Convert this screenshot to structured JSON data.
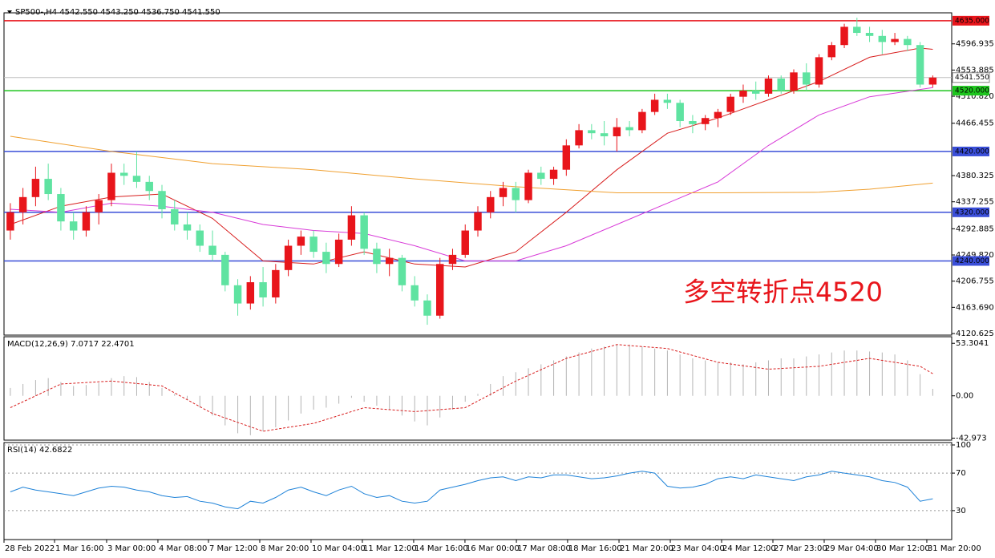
{
  "chart_data": [
    {
      "type": "candlestick",
      "title": "SP500-,H4  4542.550 4543.250 4536.750 4541.550",
      "up_color": "#e8151b",
      "down_color": "#5fe3a1",
      "open": [
        4290,
        4320,
        4345,
        4375,
        4350,
        4305,
        4290,
        4320,
        4340,
        4385,
        4380,
        4370,
        4355,
        4325,
        4300,
        4290,
        4265,
        4250,
        4200,
        4170,
        4205,
        4180,
        4225,
        4265,
        4280,
        4255,
        4235,
        4275,
        4315,
        4260,
        4235,
        4245,
        4200,
        4175,
        4150,
        4235,
        4250,
        4290,
        4320,
        4345,
        4360,
        4340,
        4385,
        4375,
        4390,
        4430,
        4455,
        4450,
        4445,
        4460,
        4455,
        4485,
        4505,
        4500,
        4470,
        4465,
        4475,
        4485,
        4510,
        4520,
        4515,
        4540,
        4520,
        4550,
        4530,
        4575,
        4595,
        4625,
        4615,
        4610,
        4600,
        4605,
        4595,
        4530
      ],
      "high": [
        4335,
        4360,
        4395,
        4400,
        4360,
        4320,
        4330,
        4350,
        4400,
        4400,
        4420,
        4380,
        4365,
        4340,
        4320,
        4300,
        4290,
        4255,
        4210,
        4215,
        4230,
        4235,
        4275,
        4290,
        4290,
        4270,
        4285,
        4330,
        4320,
        4270,
        4260,
        4250,
        4215,
        4185,
        4245,
        4260,
        4300,
        4330,
        4355,
        4370,
        4370,
        4390,
        4395,
        4395,
        4440,
        4465,
        4465,
        4470,
        4475,
        4470,
        4490,
        4515,
        4515,
        4505,
        4480,
        4480,
        4490,
        4515,
        4530,
        4535,
        4545,
        4545,
        4555,
        4565,
        4580,
        4600,
        4630,
        4640,
        4625,
        4620,
        4615,
        4610,
        4600,
        4545
      ],
      "low": [
        4275,
        4300,
        4330,
        4340,
        4290,
        4275,
        4280,
        4300,
        4330,
        4365,
        4360,
        4340,
        4310,
        4290,
        4275,
        4255,
        4240,
        4190,
        4150,
        4160,
        4165,
        4170,
        4215,
        4250,
        4245,
        4220,
        4230,
        4265,
        4250,
        4220,
        4215,
        4190,
        4165,
        4135,
        4145,
        4225,
        4245,
        4280,
        4310,
        4330,
        4320,
        4335,
        4365,
        4365,
        4380,
        4425,
        4440,
        4430,
        4420,
        4445,
        4450,
        4480,
        4490,
        4460,
        4450,
        4455,
        4460,
        4480,
        4500,
        4505,
        4510,
        4515,
        4515,
        4520,
        4525,
        4570,
        4590,
        4610,
        4600,
        4580,
        4595,
        4585,
        4525,
        4525
      ],
      "close": [
        4320,
        4345,
        4375,
        4350,
        4305,
        4290,
        4320,
        4340,
        4385,
        4380,
        4370,
        4355,
        4325,
        4300,
        4290,
        4265,
        4250,
        4200,
        4170,
        4205,
        4180,
        4225,
        4265,
        4280,
        4255,
        4235,
        4275,
        4315,
        4260,
        4235,
        4245,
        4200,
        4175,
        4150,
        4235,
        4250,
        4290,
        4320,
        4345,
        4360,
        4340,
        4385,
        4375,
        4390,
        4430,
        4455,
        4450,
        4445,
        4460,
        4455,
        4485,
        4505,
        4500,
        4470,
        4465,
        4475,
        4485,
        4510,
        4520,
        4515,
        4540,
        4520,
        4550,
        4530,
        4575,
        4595,
        4625,
        4615,
        4610,
        4600,
        4605,
        4595,
        4530,
        4541.55
      ],
      "lines": [
        {
          "color": "#d81e1e",
          "x": [
            0,
            4,
            8,
            12,
            16,
            20,
            24,
            28,
            32,
            36,
            40,
            44,
            48,
            52,
            56,
            60,
            64,
            68,
            72,
            73
          ],
          "values": [
            4300,
            4330,
            4345,
            4350,
            4310,
            4240,
            4235,
            4255,
            4235,
            4230,
            4255,
            4320,
            4390,
            4450,
            4475,
            4505,
            4535,
            4575,
            4590,
            4588
          ]
        },
        {
          "color": "#d83bd8",
          "x": [
            0,
            4,
            8,
            12,
            16,
            20,
            24,
            28,
            32,
            36,
            40,
            44,
            48,
            52,
            56,
            60,
            64,
            68,
            72,
            73
          ],
          "values": [
            4325,
            4320,
            4335,
            4330,
            4320,
            4300,
            4290,
            4285,
            4265,
            4240,
            4240,
            4265,
            4300,
            4335,
            4370,
            4430,
            4480,
            4510,
            4522,
            4525
          ]
        },
        {
          "color": "#f0a030",
          "x": [
            0,
            8,
            16,
            24,
            32,
            40,
            48,
            56,
            64,
            68,
            73
          ],
          "values": [
            4445,
            4420,
            4400,
            4390,
            4375,
            4362,
            4352,
            4352,
            4353,
            4358,
            4368
          ]
        }
      ],
      "levels": [
        {
          "value": 4635,
          "label": "4635.000",
          "color": "#e8151b"
        },
        {
          "value": 4520,
          "label": "4520.000",
          "color": "#1ec51e"
        },
        {
          "value": 4420,
          "label": "4420.000",
          "color": "#3a4ed8"
        },
        {
          "value": 4320,
          "label": "4320.000",
          "color": "#3a4ed8"
        },
        {
          "value": 4240,
          "label": "4240.000",
          "color": "#3a4ed8"
        }
      ],
      "price": {
        "value": 4541.55,
        "label": "4541.550"
      },
      "annotation": "多空转折点4520",
      "ylim": [
        4118,
        4648
      ],
      "yticks": [
        4596.935,
        4553.885,
        {
          "value": 4510.82,
          "label": "4510.820"
        },
        4466.455,
        4380.325,
        4337.255,
        4292.885,
        {
          "value": 4249.82,
          "label": "4249.820"
        },
        4206.755,
        {
          "value": 4163.69,
          "label": "4163.690"
        },
        4120.625
      ]
    },
    {
      "type": "macd",
      "title": "MACD(12,26,9) 7.0717 22.4701",
      "histogram": [
        8,
        12,
        16,
        18,
        14,
        10,
        11,
        13,
        18,
        20,
        19,
        14,
        8,
        2,
        -4,
        -12,
        -20,
        -30,
        -38,
        -40,
        -36,
        -32,
        -25,
        -18,
        -14,
        -12,
        -8,
        -2,
        -6,
        -10,
        -14,
        -20,
        -26,
        -30,
        -22,
        -14,
        -6,
        2,
        12,
        20,
        24,
        28,
        32,
        36,
        40,
        44,
        48,
        50,
        52,
        52,
        50,
        48,
        46,
        42,
        38,
        36,
        34,
        34,
        32,
        34,
        36,
        38,
        38,
        40,
        42,
        44,
        46,
        46,
        45,
        44,
        42,
        36,
        22,
        7.0717
      ],
      "histogram_color": "#b4b4b4",
      "signal": {
        "color": "#d81e1e",
        "x": [
          0,
          4,
          8,
          12,
          16,
          20,
          24,
          28,
          32,
          36,
          40,
          44,
          48,
          52,
          56,
          60,
          64,
          68,
          72,
          73
        ],
        "values": [
          -12,
          12,
          15,
          10,
          -18,
          -36,
          -28,
          -12,
          -16,
          -12,
          15,
          38,
          52,
          48,
          34,
          27,
          30,
          38,
          30,
          22.4701
        ]
      },
      "ylim": [
        -45,
        60
      ],
      "yticks": [
        53.3041,
        {
          "value": 0,
          "label": "0.00"
        },
        -42.973
      ]
    },
    {
      "type": "line",
      "title": "RSI(14) 42.6822",
      "color": "#1e82d8",
      "values": [
        50,
        55,
        52,
        50,
        48,
        46,
        50,
        54,
        56,
        55,
        52,
        50,
        46,
        44,
        45,
        40,
        38,
        34,
        32,
        40,
        38,
        44,
        52,
        55,
        50,
        46,
        52,
        56,
        48,
        44,
        46,
        40,
        38,
        40,
        52,
        55,
        58,
        62,
        65,
        66,
        62,
        66,
        65,
        68,
        68,
        66,
        64,
        65,
        67,
        70,
        72,
        70,
        56,
        54,
        55,
        58,
        64,
        66,
        64,
        68,
        66,
        64,
        62,
        66,
        68,
        72,
        70,
        68,
        66,
        62,
        60,
        55,
        40,
        42.6822
      ],
      "ylim": [
        0,
        100
      ],
      "yticks": [
        100,
        70,
        30
      ],
      "xlim": [
        -0.5,
        74.5
      ],
      "xticks": [
        {
          "value": -0.5,
          "label": "28 Feb 2022"
        },
        {
          "value": 3.5,
          "label": "1 Mar 16:00"
        },
        {
          "value": 7.62,
          "label": "3 Mar 00:00"
        },
        {
          "value": 11.68,
          "label": "4 Mar 08:00"
        },
        {
          "value": 15.68,
          "label": "7 Mar 12:00"
        },
        {
          "value": 19.74,
          "label": "8 Mar 20:00"
        },
        {
          "value": 23.8,
          "label": "10 Mar 04:00"
        },
        {
          "value": 27.86,
          "label": "11 Mar 12:00"
        },
        {
          "value": 31.92,
          "label": "14 Mar 16:00"
        },
        {
          "value": 35.98,
          "label": "16 Mar 00:00"
        },
        {
          "value": 40.05,
          "label": "17 Mar 08:00"
        },
        {
          "value": 44.1,
          "label": "18 Mar 16:00"
        },
        {
          "value": 48.17,
          "label": "21 Mar 20:00"
        },
        {
          "value": 52.23,
          "label": "23 Mar 04:00"
        },
        {
          "value": 56.29,
          "label": "24 Mar 12:00"
        },
        {
          "value": 60.35,
          "label": "27 Mar 23:00"
        },
        {
          "value": 64.41,
          "label": "29 Mar 04:00"
        },
        {
          "value": 68.47,
          "label": "30 Mar 12:00"
        },
        {
          "value": 72.53,
          "label": "31 Mar 20:00"
        }
      ]
    }
  ]
}
